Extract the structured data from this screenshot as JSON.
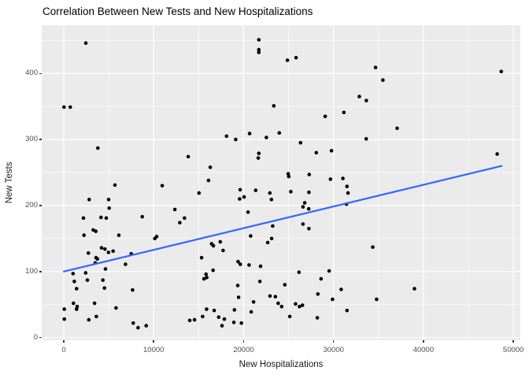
{
  "title": "Correlation Between New Tests and New Hospitalizations",
  "chart_data": {
    "type": "scatter",
    "title": "Correlation Between New Tests and New Hospitalizations",
    "xlabel": "New Hospitalizations",
    "ylabel": "New Tests",
    "x_ticks": [
      0,
      10000,
      20000,
      30000,
      40000,
      50000
    ],
    "y_ticks": [
      0,
      100,
      200,
      300,
      400
    ],
    "xlim": [
      -2450,
      50800
    ],
    "ylim": [
      -5,
      473
    ],
    "grid": "white major and minor gridlines on gray panel",
    "legend_position": "none",
    "theme": {
      "panel_bg": "#EBEBEB",
      "grid_color": "#FFFFFF",
      "point_color": "#000000",
      "trend_color": "#3366FF",
      "tick_label_color": "#4D4D4D",
      "axis_title_color": "#1a1a1a"
    },
    "trend_line": {
      "type": "linear",
      "x_start": 0,
      "y_start": 100,
      "x_end": 48700,
      "y_end": 260
    },
    "points": [
      [
        2450,
        446
      ],
      [
        30,
        349
      ],
      [
        730,
        349
      ],
      [
        3790,
        287
      ],
      [
        13840,
        274
      ],
      [
        21690,
        451
      ],
      [
        21690,
        436
      ],
      [
        21690,
        432
      ],
      [
        24870,
        420
      ],
      [
        25830,
        424
      ],
      [
        32870,
        365
      ],
      [
        23360,
        351
      ],
      [
        31150,
        341
      ],
      [
        29070,
        335
      ],
      [
        20670,
        309
      ],
      [
        23970,
        310
      ],
      [
        22530,
        303
      ],
      [
        18100,
        305
      ],
      [
        19120,
        300
      ],
      [
        26330,
        295
      ],
      [
        28080,
        280
      ],
      [
        29770,
        283
      ],
      [
        21690,
        279
      ],
      [
        21630,
        272
      ],
      [
        16290,
        258
      ],
      [
        24960,
        248
      ],
      [
        25020,
        244
      ],
      [
        27300,
        247
      ],
      [
        29660,
        240
      ],
      [
        31040,
        241
      ],
      [
        34680,
        409
      ],
      [
        48660,
        403
      ],
      [
        35490,
        390
      ],
      [
        33650,
        359
      ],
      [
        37070,
        317
      ],
      [
        33630,
        301
      ],
      [
        48200,
        278
      ],
      [
        5690,
        231
      ],
      [
        10950,
        230
      ],
      [
        2830,
        209
      ],
      [
        4990,
        209
      ],
      [
        5050,
        196
      ],
      [
        12350,
        194
      ],
      [
        2190,
        181
      ],
      [
        4140,
        182
      ],
      [
        4730,
        181
      ],
      [
        8730,
        183
      ],
      [
        13430,
        181
      ],
      [
        12900,
        174
      ],
      [
        2250,
        155
      ],
      [
        3270,
        163
      ],
      [
        3560,
        161
      ],
      [
        6130,
        155
      ],
      [
        10130,
        150
      ],
      [
        10330,
        153
      ],
      [
        4200,
        136
      ],
      [
        4580,
        134
      ],
      [
        4970,
        129
      ],
      [
        5490,
        131
      ],
      [
        2740,
        128
      ],
      [
        7500,
        127
      ],
      [
        3590,
        121
      ],
      [
        3740,
        119
      ],
      [
        6860,
        111
      ],
      [
        3500,
        113
      ],
      [
        4640,
        104
      ],
      [
        1030,
        97
      ],
      [
        2430,
        98
      ],
      [
        1170,
        85
      ],
      [
        2630,
        87
      ],
      [
        4350,
        87
      ],
      [
        1430,
        74
      ],
      [
        4530,
        75
      ],
      [
        7650,
        72
      ],
      [
        1080,
        52
      ],
      [
        1490,
        47
      ],
      [
        1430,
        43
      ],
      [
        60,
        43
      ],
      [
        3420,
        52
      ],
      [
        3620,
        32
      ],
      [
        60,
        28
      ],
      [
        2780,
        27
      ],
      [
        5810,
        45
      ],
      [
        7730,
        22
      ],
      [
        8260,
        15
      ],
      [
        9170,
        18
      ],
      [
        14010,
        26
      ],
      [
        14540,
        27
      ],
      [
        15040,
        219
      ],
      [
        16100,
        238
      ],
      [
        19620,
        224
      ],
      [
        19560,
        210
      ],
      [
        20060,
        213
      ],
      [
        21340,
        223
      ],
      [
        22920,
        219
      ],
      [
        23090,
        209
      ],
      [
        25250,
        221
      ],
      [
        27260,
        220
      ],
      [
        31500,
        229
      ],
      [
        31610,
        219
      ],
      [
        31440,
        202
      ],
      [
        26600,
        198
      ],
      [
        26800,
        204
      ],
      [
        20490,
        190
      ],
      [
        27240,
        195
      ],
      [
        26600,
        172
      ],
      [
        27260,
        165
      ],
      [
        23230,
        169
      ],
      [
        20780,
        154
      ],
      [
        23120,
        150
      ],
      [
        22680,
        144
      ],
      [
        16440,
        142
      ],
      [
        16640,
        139
      ],
      [
        17400,
        145
      ],
      [
        17720,
        132
      ],
      [
        15330,
        121
      ],
      [
        19380,
        115
      ],
      [
        19640,
        111
      ],
      [
        20610,
        110
      ],
      [
        21890,
        108
      ],
      [
        16610,
        102
      ],
      [
        15820,
        96
      ],
      [
        15590,
        89
      ],
      [
        15910,
        91
      ],
      [
        26160,
        99
      ],
      [
        28610,
        89
      ],
      [
        29510,
        101
      ],
      [
        21810,
        85
      ],
      [
        24580,
        80
      ],
      [
        19350,
        79
      ],
      [
        19440,
        61
      ],
      [
        22940,
        63
      ],
      [
        23530,
        62
      ],
      [
        23850,
        52
      ],
      [
        24230,
        47
      ],
      [
        21110,
        54
      ],
      [
        28260,
        66
      ],
      [
        29890,
        58
      ],
      [
        30850,
        73
      ],
      [
        25770,
        51
      ],
      [
        26210,
        47
      ],
      [
        26540,
        49
      ],
      [
        15880,
        43
      ],
      [
        16730,
        41
      ],
      [
        15440,
        32
      ],
      [
        17230,
        31
      ],
      [
        17860,
        28
      ],
      [
        18980,
        42
      ],
      [
        17600,
        18
      ],
      [
        18920,
        23
      ],
      [
        19760,
        22
      ],
      [
        20840,
        39
      ],
      [
        25130,
        32
      ],
      [
        28200,
        30
      ],
      [
        31500,
        41
      ],
      [
        34360,
        137
      ],
      [
        39000,
        74
      ],
      [
        34790,
        58
      ]
    ]
  }
}
